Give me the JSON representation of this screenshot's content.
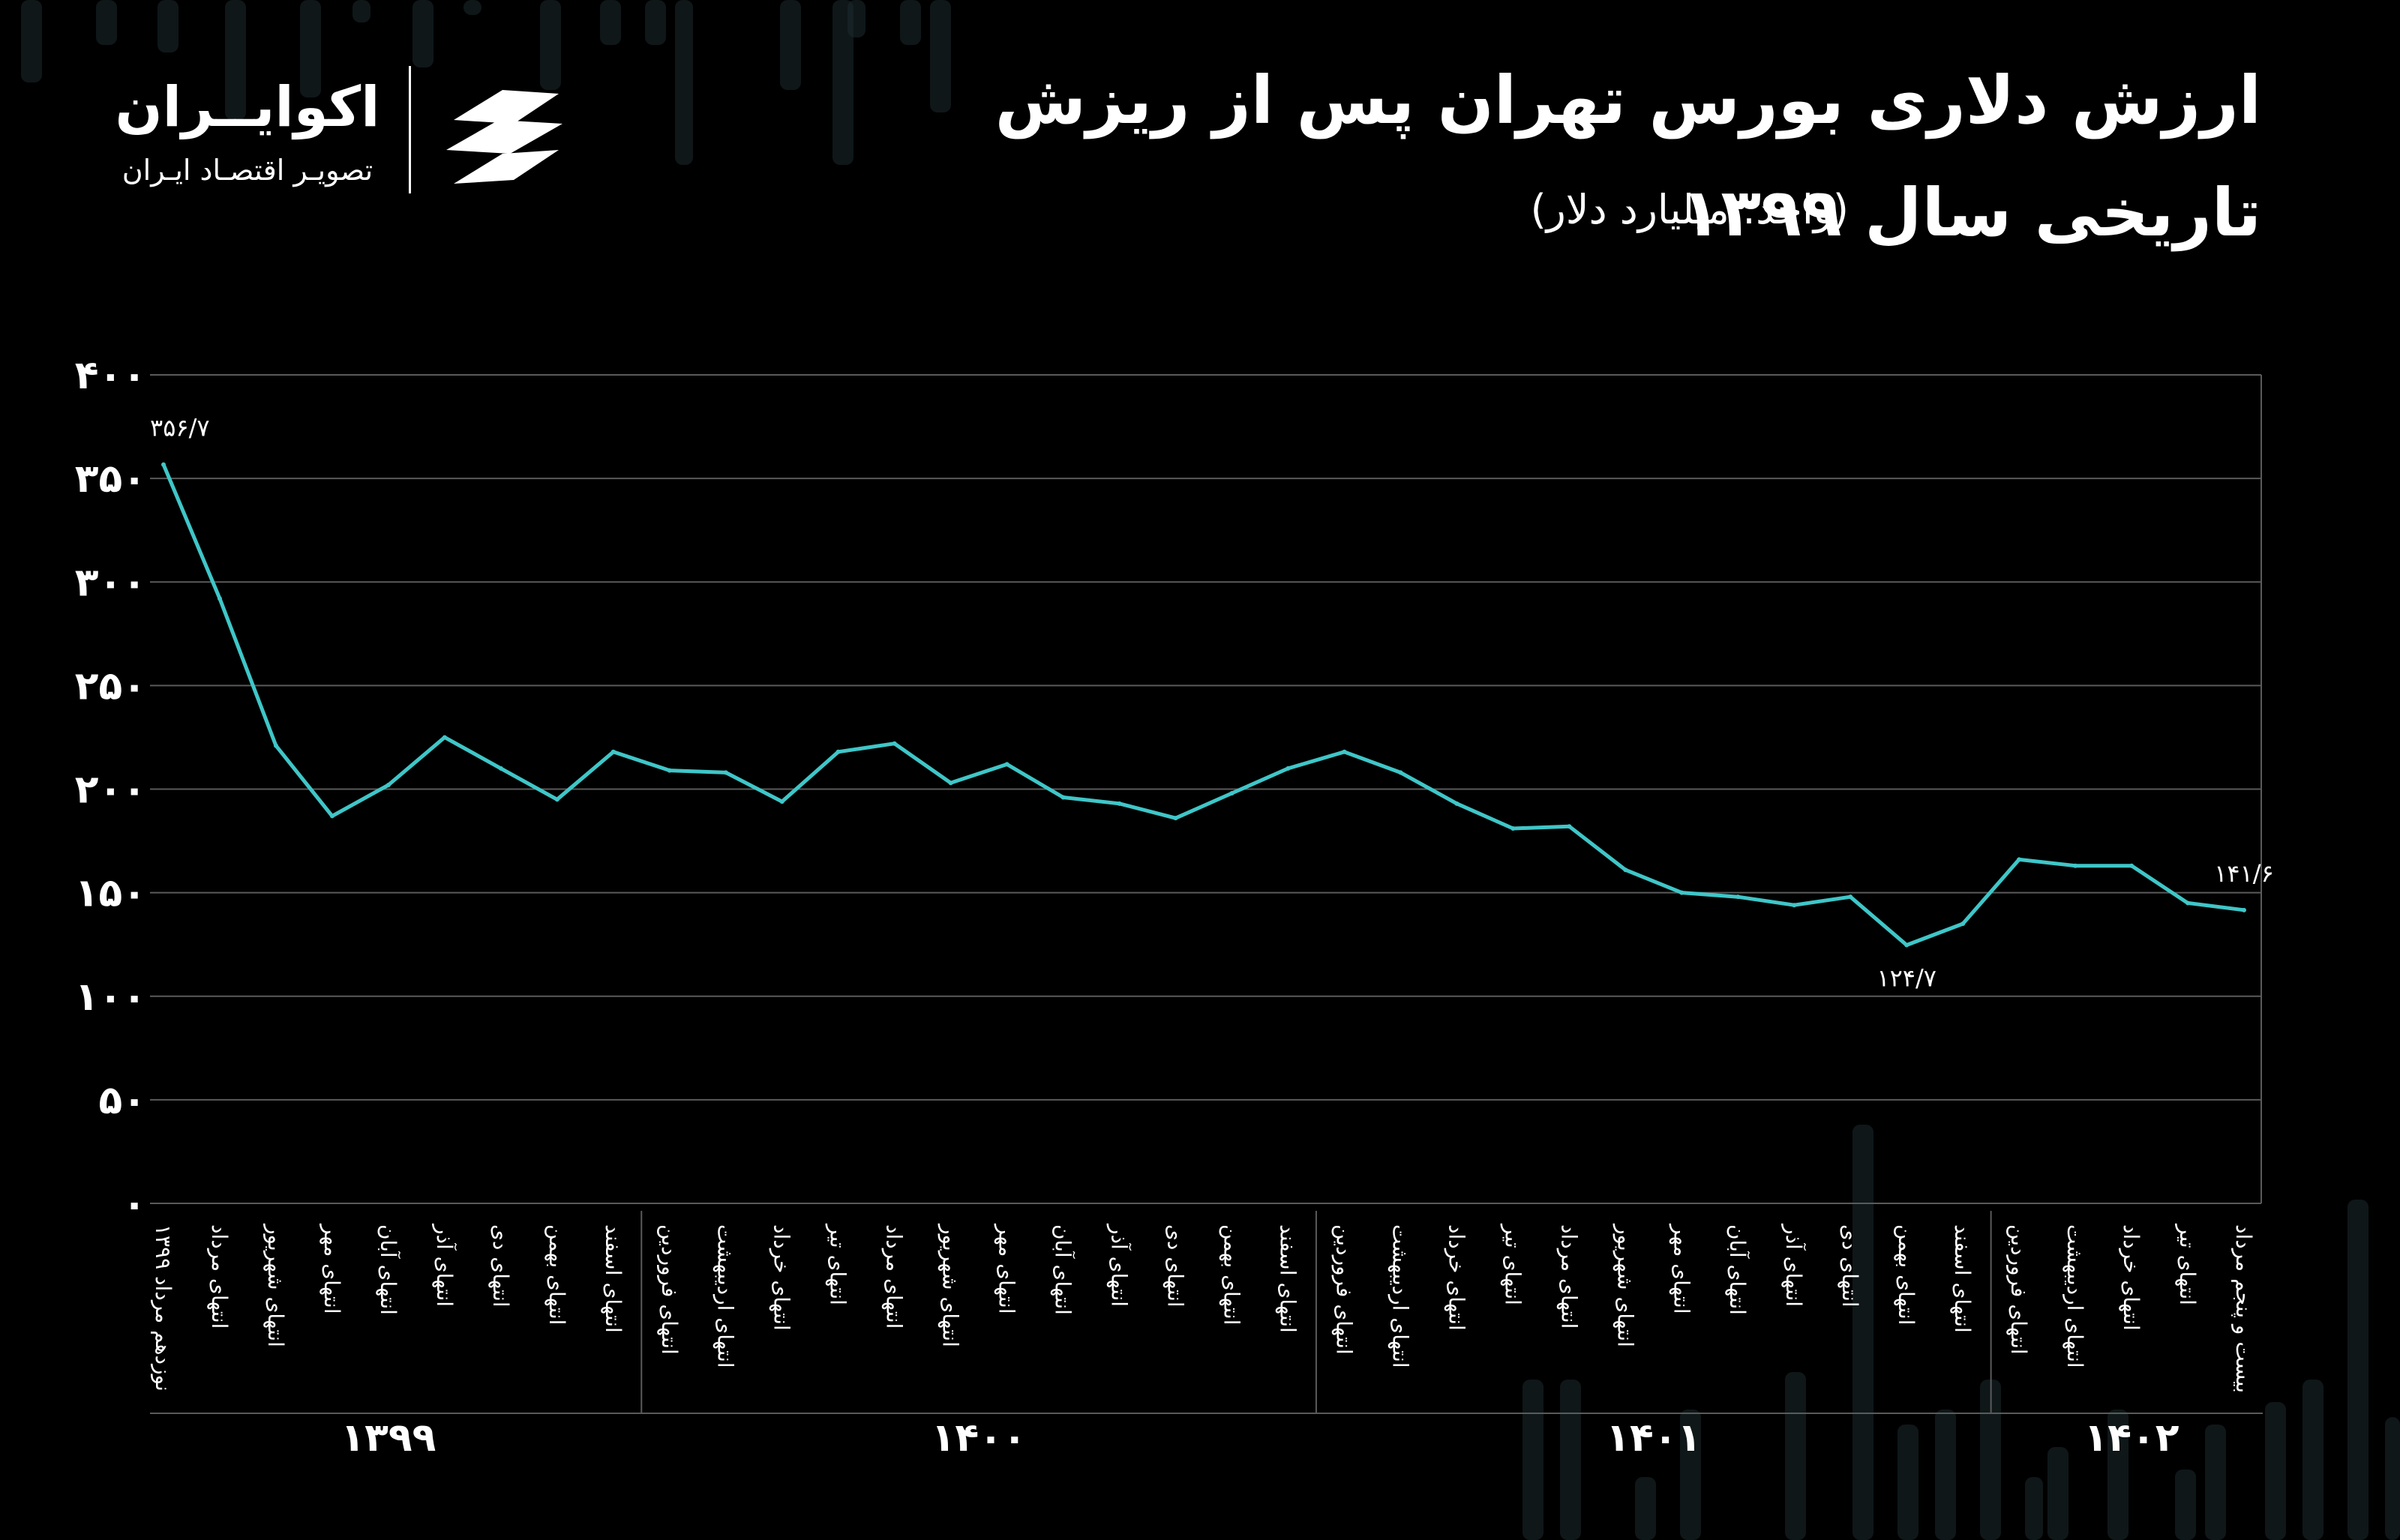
{
  "header": {
    "title_line1": "ارزش دلاری بورس تهران پس از ریزش",
    "title_line2": "تاریخی سال ۱۳۹۹",
    "unit": "(واحد: میلیارد دلار)"
  },
  "logo": {
    "name": "اکوایــران",
    "tagline": "تصویـر اقتصـاد ایـران"
  },
  "colors": {
    "line": "#3fc6c8",
    "grid": "#5a5a5a",
    "background": "#000000",
    "text": "#ffffff"
  },
  "chart_data": {
    "type": "line",
    "title": "ارزش دلاری بورس تهران پس از ریزش تاریخی سال ۱۳۹۹",
    "ylabel": "(واحد: میلیارد دلار)",
    "ylim": [
      0,
      400
    ],
    "yticks": [
      0,
      50,
      100,
      150,
      200,
      250,
      300,
      350,
      400
    ],
    "ytick_labels": [
      "۰",
      "۵۰",
      "۱۰۰",
      "۱۵۰",
      "۲۰۰",
      "۲۵۰",
      "۳۰۰",
      "۳۵۰",
      "۴۰۰"
    ],
    "grid": true,
    "categories": [
      "نوزدهم مرداد ۱۳۹۹",
      "انتهای مرداد",
      "انتهای شهریور",
      "انتهای مهر",
      "انتهای آبان",
      "انتهای آذر",
      "انتهای دی",
      "انتهای بهمن",
      "انتهای اسفند",
      "انتهای فروردین",
      "انتهای اردیبهشت",
      "انتهای خرداد",
      "انتهای تیر",
      "انتهای مرداد",
      "انتهای شهریور",
      "انتهای مهر",
      "انتهای آبان",
      "انتهای آذر",
      "انتهای دی",
      "انتهای بهمن",
      "انتهای اسفند",
      "انتهای فروردین",
      "انتهای اردیبهشت",
      "انتهای خرداد",
      "انتهای تیر",
      "انتهای مرداد",
      "انتهای شهریور",
      "انتهای مهر",
      "انتهای آبان",
      "انتهای آذر",
      "انتهای دی",
      "انتهای بهمن",
      "انتهای اسفند",
      "انتهای فروردین",
      "انتهای اردیبهشت",
      "انتهای خرداد",
      "انتهای تیر",
      "بیست و پنجم مرداد"
    ],
    "values": [
      356.7,
      292,
      221,
      187,
      202,
      225,
      210,
      195,
      218,
      209,
      208,
      194,
      218,
      222,
      203,
      212,
      196,
      193,
      186,
      198,
      210,
      218,
      208,
      193,
      181,
      182,
      161,
      150,
      148,
      144,
      148,
      124.7,
      135,
      166,
      163,
      163,
      145,
      141.6
    ],
    "year_groups": [
      {
        "label": "۱۳۹۹",
        "start": 0,
        "end": 8
      },
      {
        "label": "۱۴۰۰",
        "start": 9,
        "end": 20
      },
      {
        "label": "۱۴۰۱",
        "start": 21,
        "end": 32
      },
      {
        "label": "۱۴۰۲",
        "start": 33,
        "end": 37
      }
    ],
    "annotations": [
      {
        "index": 0,
        "text": "۳۵۶/۷",
        "position": "above"
      },
      {
        "index": 31,
        "text": "۱۲۴/۷",
        "position": "below"
      },
      {
        "index": 37,
        "text": "۱۴۱/۶",
        "position": "above"
      }
    ]
  }
}
